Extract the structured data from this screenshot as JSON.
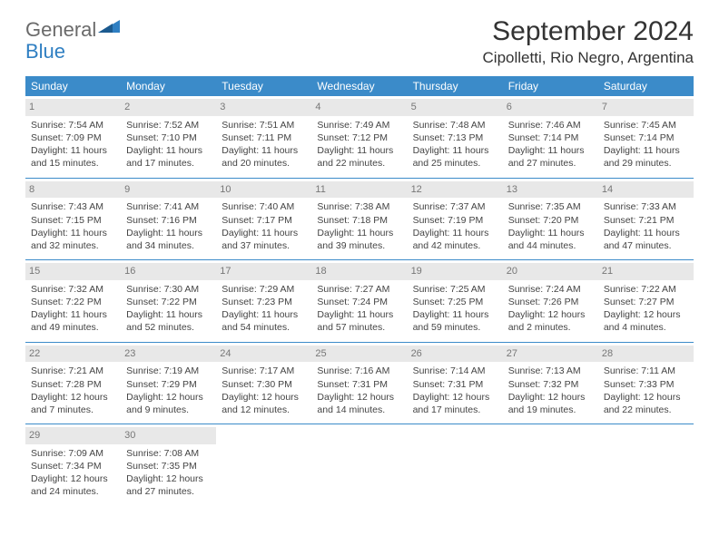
{
  "logo": {
    "general": "General",
    "blue": "Blue"
  },
  "title": "September 2024",
  "location": "Cipolletti, Rio Negro, Argentina",
  "colors": {
    "header_bg": "#3b8bc9",
    "header_text": "#ffffff",
    "daynum_bg": "#e8e8e8",
    "daynum_fg": "#777777",
    "divider": "#3b8bc9",
    "logo_gray": "#6a6a6a",
    "logo_blue": "#2f7fc2"
  },
  "weekdays": [
    "Sunday",
    "Monday",
    "Tuesday",
    "Wednesday",
    "Thursday",
    "Friday",
    "Saturday"
  ],
  "weeks": [
    [
      {
        "num": "1",
        "sunrise": "Sunrise: 7:54 AM",
        "sunset": "Sunset: 7:09 PM",
        "day1": "Daylight: 11 hours",
        "day2": "and 15 minutes."
      },
      {
        "num": "2",
        "sunrise": "Sunrise: 7:52 AM",
        "sunset": "Sunset: 7:10 PM",
        "day1": "Daylight: 11 hours",
        "day2": "and 17 minutes."
      },
      {
        "num": "3",
        "sunrise": "Sunrise: 7:51 AM",
        "sunset": "Sunset: 7:11 PM",
        "day1": "Daylight: 11 hours",
        "day2": "and 20 minutes."
      },
      {
        "num": "4",
        "sunrise": "Sunrise: 7:49 AM",
        "sunset": "Sunset: 7:12 PM",
        "day1": "Daylight: 11 hours",
        "day2": "and 22 minutes."
      },
      {
        "num": "5",
        "sunrise": "Sunrise: 7:48 AM",
        "sunset": "Sunset: 7:13 PM",
        "day1": "Daylight: 11 hours",
        "day2": "and 25 minutes."
      },
      {
        "num": "6",
        "sunrise": "Sunrise: 7:46 AM",
        "sunset": "Sunset: 7:14 PM",
        "day1": "Daylight: 11 hours",
        "day2": "and 27 minutes."
      },
      {
        "num": "7",
        "sunrise": "Sunrise: 7:45 AM",
        "sunset": "Sunset: 7:14 PM",
        "day1": "Daylight: 11 hours",
        "day2": "and 29 minutes."
      }
    ],
    [
      {
        "num": "8",
        "sunrise": "Sunrise: 7:43 AM",
        "sunset": "Sunset: 7:15 PM",
        "day1": "Daylight: 11 hours",
        "day2": "and 32 minutes."
      },
      {
        "num": "9",
        "sunrise": "Sunrise: 7:41 AM",
        "sunset": "Sunset: 7:16 PM",
        "day1": "Daylight: 11 hours",
        "day2": "and 34 minutes."
      },
      {
        "num": "10",
        "sunrise": "Sunrise: 7:40 AM",
        "sunset": "Sunset: 7:17 PM",
        "day1": "Daylight: 11 hours",
        "day2": "and 37 minutes."
      },
      {
        "num": "11",
        "sunrise": "Sunrise: 7:38 AM",
        "sunset": "Sunset: 7:18 PM",
        "day1": "Daylight: 11 hours",
        "day2": "and 39 minutes."
      },
      {
        "num": "12",
        "sunrise": "Sunrise: 7:37 AM",
        "sunset": "Sunset: 7:19 PM",
        "day1": "Daylight: 11 hours",
        "day2": "and 42 minutes."
      },
      {
        "num": "13",
        "sunrise": "Sunrise: 7:35 AM",
        "sunset": "Sunset: 7:20 PM",
        "day1": "Daylight: 11 hours",
        "day2": "and 44 minutes."
      },
      {
        "num": "14",
        "sunrise": "Sunrise: 7:33 AM",
        "sunset": "Sunset: 7:21 PM",
        "day1": "Daylight: 11 hours",
        "day2": "and 47 minutes."
      }
    ],
    [
      {
        "num": "15",
        "sunrise": "Sunrise: 7:32 AM",
        "sunset": "Sunset: 7:22 PM",
        "day1": "Daylight: 11 hours",
        "day2": "and 49 minutes."
      },
      {
        "num": "16",
        "sunrise": "Sunrise: 7:30 AM",
        "sunset": "Sunset: 7:22 PM",
        "day1": "Daylight: 11 hours",
        "day2": "and 52 minutes."
      },
      {
        "num": "17",
        "sunrise": "Sunrise: 7:29 AM",
        "sunset": "Sunset: 7:23 PM",
        "day1": "Daylight: 11 hours",
        "day2": "and 54 minutes."
      },
      {
        "num": "18",
        "sunrise": "Sunrise: 7:27 AM",
        "sunset": "Sunset: 7:24 PM",
        "day1": "Daylight: 11 hours",
        "day2": "and 57 minutes."
      },
      {
        "num": "19",
        "sunrise": "Sunrise: 7:25 AM",
        "sunset": "Sunset: 7:25 PM",
        "day1": "Daylight: 11 hours",
        "day2": "and 59 minutes."
      },
      {
        "num": "20",
        "sunrise": "Sunrise: 7:24 AM",
        "sunset": "Sunset: 7:26 PM",
        "day1": "Daylight: 12 hours",
        "day2": "and 2 minutes."
      },
      {
        "num": "21",
        "sunrise": "Sunrise: 7:22 AM",
        "sunset": "Sunset: 7:27 PM",
        "day1": "Daylight: 12 hours",
        "day2": "and 4 minutes."
      }
    ],
    [
      {
        "num": "22",
        "sunrise": "Sunrise: 7:21 AM",
        "sunset": "Sunset: 7:28 PM",
        "day1": "Daylight: 12 hours",
        "day2": "and 7 minutes."
      },
      {
        "num": "23",
        "sunrise": "Sunrise: 7:19 AM",
        "sunset": "Sunset: 7:29 PM",
        "day1": "Daylight: 12 hours",
        "day2": "and 9 minutes."
      },
      {
        "num": "24",
        "sunrise": "Sunrise: 7:17 AM",
        "sunset": "Sunset: 7:30 PM",
        "day1": "Daylight: 12 hours",
        "day2": "and 12 minutes."
      },
      {
        "num": "25",
        "sunrise": "Sunrise: 7:16 AM",
        "sunset": "Sunset: 7:31 PM",
        "day1": "Daylight: 12 hours",
        "day2": "and 14 minutes."
      },
      {
        "num": "26",
        "sunrise": "Sunrise: 7:14 AM",
        "sunset": "Sunset: 7:31 PM",
        "day1": "Daylight: 12 hours",
        "day2": "and 17 minutes."
      },
      {
        "num": "27",
        "sunrise": "Sunrise: 7:13 AM",
        "sunset": "Sunset: 7:32 PM",
        "day1": "Daylight: 12 hours",
        "day2": "and 19 minutes."
      },
      {
        "num": "28",
        "sunrise": "Sunrise: 7:11 AM",
        "sunset": "Sunset: 7:33 PM",
        "day1": "Daylight: 12 hours",
        "day2": "and 22 minutes."
      }
    ],
    [
      {
        "num": "29",
        "sunrise": "Sunrise: 7:09 AM",
        "sunset": "Sunset: 7:34 PM",
        "day1": "Daylight: 12 hours",
        "day2": "and 24 minutes."
      },
      {
        "num": "30",
        "sunrise": "Sunrise: 7:08 AM",
        "sunset": "Sunset: 7:35 PM",
        "day1": "Daylight: 12 hours",
        "day2": "and 27 minutes."
      },
      null,
      null,
      null,
      null,
      null
    ]
  ]
}
